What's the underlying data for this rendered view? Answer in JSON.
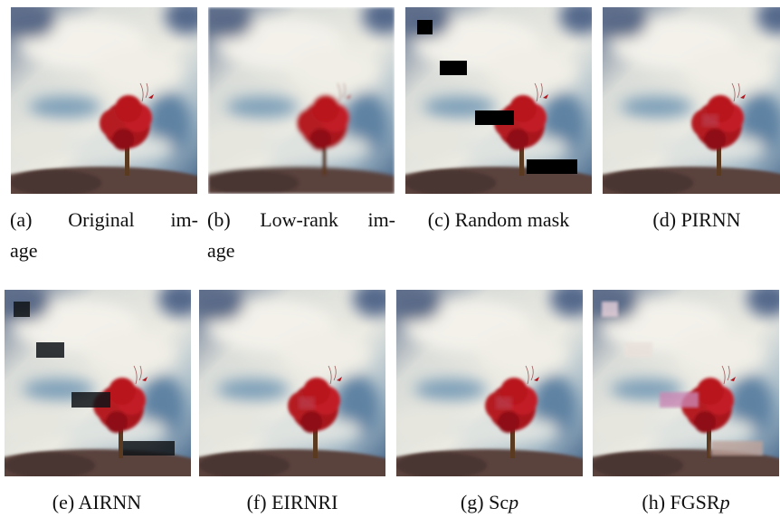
{
  "figures": [
    {
      "label": "(a)",
      "caption_lines": [
        "Original im-",
        "age"
      ]
    },
    {
      "label": "(b)",
      "caption_lines": [
        "Low-rank im-",
        "age"
      ]
    },
    {
      "label": "(c)",
      "caption_lines": [
        "Random mask"
      ]
    },
    {
      "label": "(d)",
      "caption_lines": [
        "PIRNN"
      ]
    },
    {
      "label": "(e)",
      "caption_lines": [
        "AIRNN"
      ]
    },
    {
      "label": "(f)",
      "caption_lines": [
        "EIRNRI"
      ]
    },
    {
      "label": "(g)",
      "caption_lines": [
        "Sc"
      ],
      "caption_italic": "p"
    },
    {
      "label": "(h)",
      "caption_lines": [
        "FGSR"
      ],
      "caption_italic": "p"
    }
  ]
}
